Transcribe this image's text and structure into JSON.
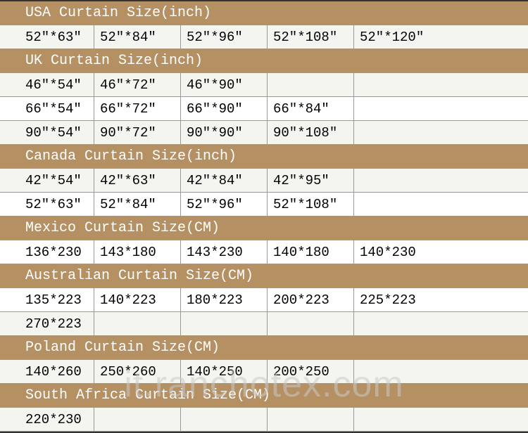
{
  "watermark": "it.ranchotex.com",
  "header_bg": "#b59063",
  "header_fg": "#ffffff",
  "row_bg": "#ffffff",
  "row_alt_bg": "#f5f5f0",
  "border_color": "#999999",
  "font": "Courier New",
  "font_size": 19,
  "header_font_size": 20,
  "sections": [
    {
      "title": "USA Curtain Size(inch)",
      "rows": [
        [
          "52″*63″",
          "52″*84″",
          "52″*96″",
          "52″*108″",
          "52″*120″"
        ]
      ]
    },
    {
      "title": "UK Curtain Size(inch)",
      "rows": [
        [
          "46″*54″",
          "46″*72″",
          "46″*90″",
          "",
          ""
        ],
        [
          "66″*54″",
          "66″*72″",
          "66″*90″",
          "66″*84″",
          ""
        ],
        [
          "90″*54″",
          "90″*72″",
          "90″*90″",
          "90″*108″",
          ""
        ]
      ]
    },
    {
      "title": "Canada Curtain Size(inch)",
      "rows": [
        [
          "42″*54″",
          "42″*63″",
          "42″*84″",
          "42″*95″",
          ""
        ],
        [
          "52″*63″",
          "52″*84″",
          "52″*96″",
          "52″*108″",
          ""
        ]
      ]
    },
    {
      "title": "Mexico Curtain Size(CM)",
      "rows": [
        [
          "136*230",
          "143*180",
          "143*230",
          "140*180",
          "140*230"
        ]
      ]
    },
    {
      "title": "Australian Curtain Size(CM)",
      "rows": [
        [
          "135*223",
          "140*223",
          "180*223",
          "200*223",
          "225*223"
        ],
        [
          "270*223",
          "",
          "",
          "",
          ""
        ]
      ]
    },
    {
      "title": "Poland Curtain Size(CM)",
      "rows": [
        [
          "140*260",
          "250*260",
          "140*250",
          "200*250",
          ""
        ]
      ]
    },
    {
      "title": "South Africa Curtain Size(CM)",
      "rows": [
        [
          "220*230",
          "",
          "",
          "",
          ""
        ]
      ]
    }
  ]
}
